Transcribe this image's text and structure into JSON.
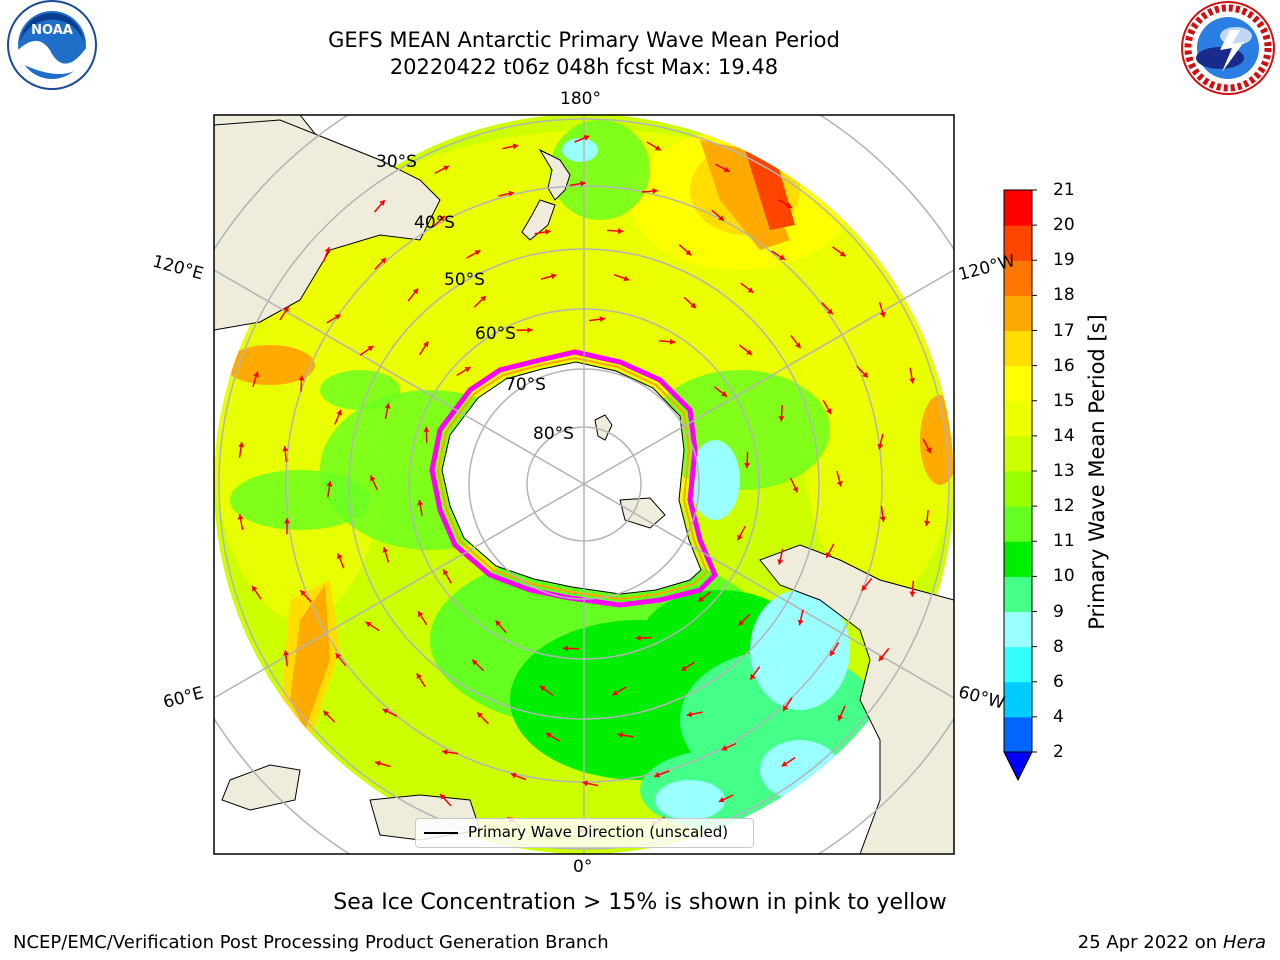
{
  "title": {
    "line1": "GEFS MEAN Antarctic Primary Wave Mean Period",
    "line2": "20220422 t06z 048h fcst   Max: 19.48"
  },
  "logos": {
    "left": {
      "name": "noaa-logo",
      "text": "NOAA",
      "ring_text": "NATIONAL OCEANIC AND ATMOSPHERIC ADMINISTRATION · U.S. DEPARTMENT OF COMMERCE"
    },
    "right": {
      "name": "nws-logo",
      "ring_text": "NATIONAL WEATHER SERVICE"
    }
  },
  "map": {
    "projection": "south-polar-stereographic",
    "lon_labels": {
      "top": "180°",
      "bottom": "0°",
      "left_upper": "120°E",
      "right_upper": "120°W",
      "left_lower": "60°E",
      "right_lower": "60°W"
    },
    "lat_labels": [
      "30°S",
      "40°S",
      "50°S",
      "60°S",
      "70°S",
      "80°S"
    ],
    "legend_label": "Primary Wave Direction (unscaled)",
    "arrow_color": "#ff0000",
    "land_color": "#efecdc",
    "sea_ice_colors": [
      "#ff00ff",
      "#ffa500",
      "#ffff00"
    ]
  },
  "colorbar": {
    "title": "Primary Wave Mean Period [s]",
    "ticks": [
      "2",
      "4",
      "6",
      "8",
      "9",
      "10",
      "11",
      "12",
      "13",
      "14",
      "15",
      "16",
      "17",
      "18",
      "19",
      "20",
      "21"
    ],
    "colors": [
      "#0066ff",
      "#00ccff",
      "#33ffff",
      "#99ffff",
      "#44ff88",
      "#00ee00",
      "#66ff22",
      "#99ff00",
      "#ccff00",
      "#eeff00",
      "#ffff00",
      "#ffdd00",
      "#ffaa00",
      "#ff7700",
      "#ff4400",
      "#ff0000"
    ],
    "extend_color": "#0000ff"
  },
  "caption": "Sea Ice Concentration > 15% is shown in pink to yellow",
  "footer": {
    "left": "NCEP/EMC/Verification Post Processing Product Generation Branch",
    "right_date": "25 Apr 2022 on",
    "right_machine": "Hera"
  }
}
